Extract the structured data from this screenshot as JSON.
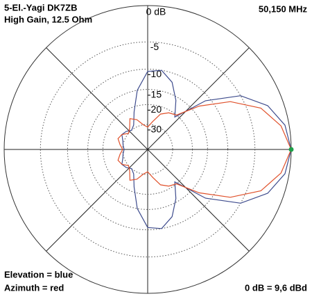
{
  "chart_data": {
    "type": "polar",
    "title": "5-El.-Yagi DK7ZB",
    "subtitle": "High Gain, 12.5 Ohm",
    "frequency": "50,150 MHz",
    "annotation": "0 dB = 9,6 dBd",
    "theta": [
      0,
      10,
      20,
      30,
      40,
      50,
      60,
      70,
      80,
      90,
      100,
      110,
      120,
      130,
      140,
      150,
      160,
      170,
      180,
      190,
      200,
      210,
      220,
      230,
      240,
      250,
      260,
      270,
      280,
      290,
      300,
      310,
      320,
      330,
      340,
      350
    ],
    "rticks": [
      {
        "value": 0,
        "label": "0 dB"
      },
      -5,
      -10,
      -15,
      -20,
      -30
    ],
    "series": [
      {
        "name": "Elevation = blue",
        "color": "#3c4a8c",
        "values": [
          0,
          -0.5,
          -2,
          -5,
          -11,
          -21,
          -16,
          -12,
          -10,
          -10.5,
          -15,
          -22,
          -28,
          -30,
          -28,
          -27,
          -29,
          -30,
          -31,
          -30,
          -29,
          -27,
          -28,
          -30,
          -28,
          -22,
          -15,
          -10.5,
          -10,
          -12,
          -16,
          -21,
          -11,
          -5,
          -2,
          -0.5
        ]
      },
      {
        "name": "Azimuth = red",
        "color": "#e0502a",
        "values": [
          0,
          -1,
          -3,
          -7,
          -13,
          -20,
          -21,
          -23,
          -28,
          -32,
          -30,
          -26,
          -24,
          -28,
          -30,
          -27,
          -26,
          -28,
          -30,
          -28,
          -26,
          -27,
          -30,
          -28,
          -24,
          -26,
          -30,
          -32,
          -28,
          -23,
          -21,
          -20,
          -13,
          -7,
          -3,
          -1
        ]
      }
    ]
  }
}
